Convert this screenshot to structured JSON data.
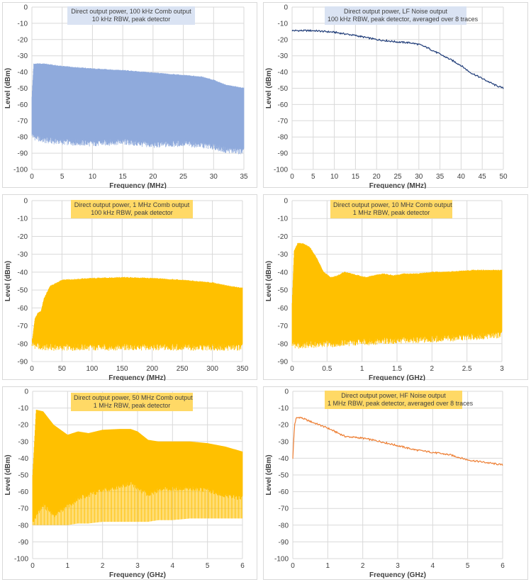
{
  "chart_data": [
    {
      "type": "area",
      "title": [
        "Direct output power, 100 kHz Comb output",
        "10 kHz RBW, peak detector"
      ],
      "xlabel": "Frequency (MHz)",
      "ylabel": "Level (dBm)",
      "xlim": [
        0,
        35
      ],
      "ylim": [
        -100,
        0
      ],
      "xticks": [
        "0",
        "5",
        "10",
        "15",
        "20",
        "25",
        "30",
        "35"
      ],
      "yticks": [
        "0",
        "-10",
        "-20",
        "-30",
        "-40",
        "-50",
        "-60",
        "-70",
        "-80",
        "-90",
        "-100"
      ],
      "color": "#8faadc",
      "titleBg": "#dae3f3",
      "series": [
        {
          "x": [
            0,
            0.3,
            2,
            5,
            10,
            15,
            20,
            25,
            28,
            30,
            32,
            35
          ],
          "upper": [
            -55,
            -35,
            -35,
            -36.5,
            -38,
            -39,
            -40.5,
            -42,
            -43,
            -45,
            -48,
            -50
          ],
          "lower": [
            -78,
            -80,
            -82,
            -83,
            -84,
            -83,
            -85,
            -84,
            -85,
            -86,
            -88,
            -89
          ]
        }
      ],
      "grid": true,
      "legend": "none"
    },
    {
      "type": "line",
      "title": [
        "Direct output power, LF Noise output",
        "100 kHz RBW, peak detector, averaged over 8 traces"
      ],
      "xlabel": "Frequency (MHz)",
      "ylabel": "Level (dBm)",
      "xlim": [
        0,
        50
      ],
      "ylim": [
        -100,
        0
      ],
      "xticks": [
        "0",
        "5",
        "10",
        "15",
        "20",
        "25",
        "30",
        "35",
        "40",
        "45",
        "50"
      ],
      "yticks": [
        "0",
        "-10",
        "-20",
        "-30",
        "-40",
        "-50",
        "-60",
        "-70",
        "-80",
        "-90",
        "-100"
      ],
      "color": "#1f3c78",
      "titleBg": "#dae3f3",
      "series": [
        {
          "x": [
            0,
            5,
            10,
            15,
            20,
            25,
            28,
            30,
            32,
            35,
            38,
            40,
            42,
            45,
            48,
            50
          ],
          "values": [
            -14.5,
            -14.5,
            -15.5,
            -17.5,
            -20,
            -21.5,
            -22,
            -23,
            -25,
            -29,
            -33,
            -36,
            -40,
            -44,
            -48,
            -50
          ]
        }
      ],
      "grid": true,
      "legend": "none"
    },
    {
      "type": "area",
      "title": [
        "Direct output power, 1 MHz Comb output",
        "100 kHz RBW, peak detector"
      ],
      "xlabel": "Frequency (MHz)",
      "ylabel": "Level (dBm)",
      "xlim": [
        0,
        350
      ],
      "ylim": [
        -90,
        0
      ],
      "xticks": [
        "0",
        "50",
        "100",
        "150",
        "200",
        "250",
        "300",
        "350"
      ],
      "yticks": [
        "0",
        "-10",
        "-20",
        "-30",
        "-40",
        "-50",
        "-60",
        "-70",
        "-80",
        "-90"
      ],
      "color": "#ffc000",
      "titleBg": "#ffd966",
      "series": [
        {
          "x": [
            0,
            5,
            10,
            15,
            20,
            30,
            50,
            100,
            150,
            200,
            250,
            300,
            330,
            350
          ],
          "upper": [
            -80,
            -66,
            -63,
            -62,
            -55,
            -48,
            -44.5,
            -43.5,
            -43,
            -43.5,
            -44.5,
            -46,
            -48,
            -49
          ],
          "lower": [
            -80,
            -81,
            -81,
            -82,
            -82,
            -82,
            -82,
            -82,
            -82,
            -82,
            -82,
            -82,
            -82,
            -82
          ]
        }
      ],
      "grid": true,
      "legend": "none"
    },
    {
      "type": "area",
      "title": [
        "Direct output power, 10 MHz Comb output",
        "1 MHz RBW, peak detector"
      ],
      "xlabel": "Frequency (GHz)",
      "ylabel": "Level (dBm)",
      "xlim": [
        0,
        3
      ],
      "ylim": [
        -90,
        0
      ],
      "xticks": [
        "0",
        "0.5",
        "1",
        "1.5",
        "2",
        "2.5",
        "3"
      ],
      "yticks": [
        "0",
        "-10",
        "-20",
        "-30",
        "-40",
        "-50",
        "-60",
        "-70",
        "-80",
        "-90"
      ],
      "color": "#ffc000",
      "titleBg": "#ffd966",
      "series": [
        {
          "x": [
            0,
            0.03,
            0.08,
            0.15,
            0.25,
            0.35,
            0.45,
            0.55,
            0.65,
            0.75,
            0.85,
            0.95,
            1.05,
            1.15,
            1.3,
            1.45,
            1.6,
            1.8,
            2.0,
            2.2,
            2.4,
            2.6,
            2.8,
            3.0
          ],
          "upper": [
            -57,
            -28,
            -24,
            -24,
            -26,
            -32,
            -40,
            -43,
            -42,
            -40,
            -41,
            -42,
            -43,
            -42,
            -41,
            -42,
            -41,
            -41,
            -40,
            -40,
            -39.5,
            -39,
            -39,
            -39
          ],
          "lower": [
            -80,
            -80.5,
            -81,
            -81,
            -80.5,
            -80.5,
            -80,
            -80,
            -80,
            -79.5,
            -79.5,
            -79,
            -79,
            -79,
            -78.5,
            -78.5,
            -78,
            -78,
            -77.5,
            -77,
            -76.5,
            -76,
            -75.5,
            -75
          ]
        }
      ],
      "grid": true,
      "legend": "none"
    },
    {
      "type": "area",
      "title": [
        "Direct output power, 50 MHz Comb output",
        "1 MHz RBW, peak detector"
      ],
      "xlabel": "Frequency (GHz)",
      "ylabel": "Level (dBm)",
      "xlim": [
        0,
        6
      ],
      "ylim": [
        -100,
        0
      ],
      "xticks": [
        "0",
        "1",
        "2",
        "3",
        "4",
        "5",
        "6"
      ],
      "yticks": [
        "0",
        "-10",
        "-20",
        "-30",
        "-40",
        "-50",
        "-60",
        "-70",
        "-80",
        "-90",
        "-100"
      ],
      "color": "#ffc000",
      "titleBg": "#ffd966",
      "series": [
        {
          "x": [
            0,
            0.1,
            0.3,
            0.6,
            1.0,
            1.3,
            1.6,
            2.0,
            2.5,
            2.8,
            3.0,
            3.3,
            3.6,
            4.0,
            4.5,
            5.0,
            5.5,
            6.0
          ],
          "upper": [
            -50,
            -11,
            -12,
            -20,
            -26,
            -24,
            -25,
            -23,
            -22.5,
            -22.5,
            -24,
            -29,
            -30,
            -30,
            -30,
            -31,
            -33,
            -36
          ],
          "lower": [
            -79,
            -74,
            -68,
            -74,
            -69,
            -64,
            -62,
            -59,
            -57,
            -55,
            -58,
            -62,
            -59,
            -58,
            -58,
            -59,
            -62,
            -64
          ],
          "floor": [
            -80,
            -80,
            -80,
            -80,
            -80,
            -79,
            -79,
            -78,
            -78,
            -78,
            -78,
            -78,
            -77,
            -77,
            -76,
            -76,
            -76,
            -76
          ]
        }
      ],
      "grid": true,
      "legend": "none"
    },
    {
      "type": "line",
      "title": [
        "Direct output power, HF Noise output",
        "1 MHz RBW, peak detector, averaged over 8 traces"
      ],
      "xlabel": "Frequency (GHz)",
      "ylabel": "Level (dBm)",
      "xlim": [
        0,
        6
      ],
      "ylim": [
        -100,
        0
      ],
      "xticks": [
        "0",
        "1",
        "2",
        "3",
        "4",
        "5",
        "6"
      ],
      "yticks": [
        "0",
        "-10",
        "-20",
        "-30",
        "-40",
        "-50",
        "-60",
        "-70",
        "-80",
        "-90",
        "-100"
      ],
      "color": "#ed7d31",
      "titleBg": "#ffd966",
      "series": [
        {
          "x": [
            0,
            0.05,
            0.1,
            0.2,
            0.5,
            1.0,
            1.5,
            2.0,
            2.5,
            3.0,
            3.5,
            4.0,
            4.5,
            5.0,
            5.5,
            6.0
          ],
          "values": [
            -40,
            -20,
            -16,
            -15.5,
            -18,
            -22,
            -27,
            -28,
            -30,
            -32.5,
            -35,
            -36.5,
            -38,
            -41,
            -42.5,
            -44
          ]
        }
      ],
      "grid": true,
      "legend": "none"
    }
  ]
}
